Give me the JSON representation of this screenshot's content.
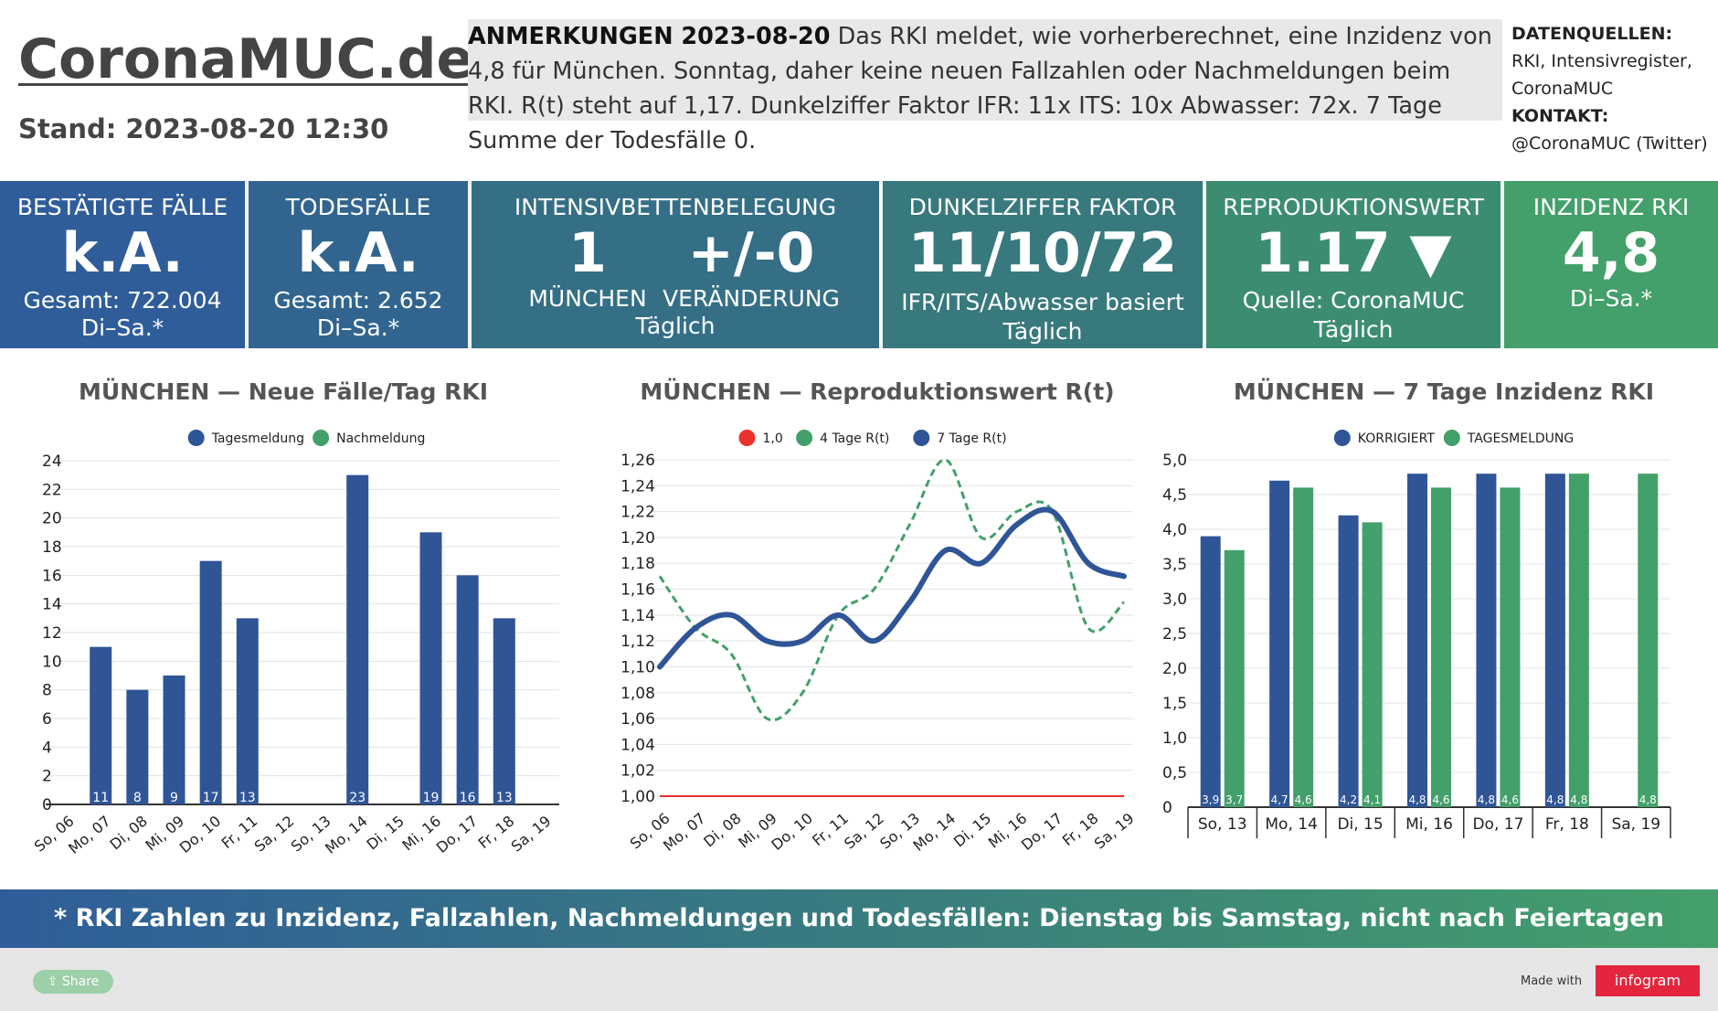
{
  "header": {
    "logo": "CoronaMUC.de",
    "stand": "Stand: 2023-08-20 12:30",
    "notes_title": "ANMERKUNGEN 2023-08-20",
    "notes_text": " Das RKI meldet, wie vorherberechnet, eine Inzidenz von 4,8 für München. Sonntag, daher keine neuen Fallzahlen oder Nachmeldungen beim RKI. R(t) steht auf 1,17. Dunkelziffer Faktor IFR: 11x ITS: 10x Abwasser: 72x. 7 Tage Summe der Todesfälle 0.",
    "sources_title": "DATENQUELLEN:",
    "sources_line1": "RKI, Intensivregister,",
    "sources_line2": "CoronaMUC",
    "contact_title": "KONTAKT:",
    "contact_text": "@CoronaMUC (Twitter)"
  },
  "kpis": {
    "faelle": {
      "title": "BESTÄTIGTE FÄLLE",
      "value": "k.A.",
      "sub1": "Gesamt: 722.004",
      "sub2": "Di–Sa.*",
      "color": "#2f5d9a"
    },
    "tode": {
      "title": "TODESFÄLLE",
      "value": "k.A.",
      "sub1": "Gesamt: 2.652",
      "sub2": "Di–Sa.*",
      "color": "#31658f"
    },
    "intensiv": {
      "title": "INTENSIVBETTENBELEGUNG",
      "value1": "1",
      "value2": "+/-0",
      "label1": "MÜNCHEN",
      "label2": "VERÄNDERUNG",
      "sub2": "Täglich",
      "color": "#346f86"
    },
    "dunkel": {
      "title": "DUNKELZIFFER FAKTOR",
      "value": "11/10/72",
      "sub1": "IFR/ITS/Abwasser basiert",
      "sub2": "Täglich",
      "color": "#38797d"
    },
    "repro": {
      "title": "REPRODUKTIONSWERT",
      "value": "1.17 ▼",
      "sub1": "Quelle: CoronaMUC",
      "sub2": "Täglich",
      "color": "#3c8c72"
    },
    "inzidenz": {
      "title": "INZIDENZ RKI",
      "value": "4,8",
      "sub1": "Di–Sa.*",
      "color": "#43a06a"
    }
  },
  "chart_data": [
    {
      "type": "bar",
      "title": "MÜNCHEN — Neue Fälle/Tag RKI",
      "categories": [
        "So, 06",
        "Mo, 07",
        "Di, 08",
        "Mi, 09",
        "Do, 10",
        "Fr, 11",
        "Sa, 12",
        "So, 13",
        "Mo, 14",
        "Di, 15",
        "Mi, 16",
        "Do, 17",
        "Fr, 18",
        "Sa, 19"
      ],
      "series": [
        {
          "name": "Tagesmeldung",
          "color": "#2f5597",
          "values": [
            0,
            11,
            8,
            9,
            17,
            13,
            0,
            0,
            23,
            0,
            19,
            16,
            13,
            0
          ]
        },
        {
          "name": "Nachmeldung",
          "color": "#43a06a",
          "values": [
            0,
            0,
            0,
            0,
            0,
            0,
            0,
            0,
            0,
            0,
            0,
            0,
            0,
            0
          ]
        }
      ],
      "yticks": [
        "0",
        "2",
        "4",
        "6",
        "8",
        "10",
        "12",
        "14",
        "16",
        "18",
        "20",
        "22",
        "24"
      ],
      "ylim": [
        0,
        24
      ],
      "legend": "top"
    },
    {
      "type": "line",
      "title": "MÜNCHEN — Reproduktionswert R(t)",
      "categories": [
        "So, 06",
        "Mo, 07",
        "Di, 08",
        "Mi, 09",
        "Do, 10",
        "Fr, 11",
        "Sa, 12",
        "So, 13",
        "Mo, 14",
        "Di, 15",
        "Mi, 16",
        "Do, 17",
        "Fr, 18",
        "Sa, 19"
      ],
      "series": [
        {
          "name": "1,0",
          "color": "#e8322b",
          "values": [
            1.0,
            1.0,
            1.0,
            1.0,
            1.0,
            1.0,
            1.0,
            1.0,
            1.0,
            1.0,
            1.0,
            1.0,
            1.0,
            1.0
          ]
        },
        {
          "name": "4 Tage R(t)",
          "color": "#43a06a",
          "values": [
            1.17,
            1.13,
            1.11,
            1.06,
            1.08,
            1.14,
            1.16,
            1.21,
            1.26,
            1.2,
            1.22,
            1.22,
            1.13,
            1.15
          ]
        },
        {
          "name": "7 Tage R(t)",
          "color": "#2f5597",
          "values": [
            1.1,
            1.13,
            1.14,
            1.12,
            1.12,
            1.14,
            1.12,
            1.15,
            1.19,
            1.18,
            1.21,
            1.22,
            1.18,
            1.17
          ]
        }
      ],
      "yticks": [
        "1,00",
        "1,02",
        "1,04",
        "1,06",
        "1,08",
        "1,10",
        "1,12",
        "1,14",
        "1,16",
        "1,18",
        "1,20",
        "1,22",
        "1,24",
        "1,26"
      ],
      "ylim": [
        1.0,
        1.26
      ],
      "legend": "top"
    },
    {
      "type": "bar",
      "title": "MÜNCHEN — 7 Tage Inzidenz RKI",
      "categories": [
        "So, 13",
        "Mo, 14",
        "Di, 15",
        "Mi, 16",
        "Do, 17",
        "Fr, 18",
        "Sa, 19"
      ],
      "series": [
        {
          "name": "KORRIGIERT",
          "color": "#2f5597",
          "values": [
            3.9,
            4.7,
            4.2,
            4.8,
            4.8,
            4.8,
            null
          ],
          "labels": [
            "3,9",
            "4,7",
            "4,2",
            "4,8",
            "4,8",
            "4,8",
            ""
          ]
        },
        {
          "name": "TAGESMELDUNG",
          "color": "#43a06a",
          "values": [
            3.7,
            4.6,
            4.1,
            4.6,
            4.6,
            4.8,
            4.8
          ],
          "labels": [
            "3,7",
            "4,6",
            "4,1",
            "4,6",
            "4,6",
            "4,8",
            "4,8"
          ]
        }
      ],
      "yticks": [
        "0",
        "0,5",
        "1,0",
        "1,5",
        "2,0",
        "2,5",
        "3,0",
        "3,5",
        "4,0",
        "4,5",
        "5,0"
      ],
      "ylim": [
        0,
        5.0
      ],
      "legend": "top"
    }
  ],
  "banner": "* RKI Zahlen zu Inzidenz, Fallzahlen, Nachmeldungen und Todesfällen: Dienstag bis Samstag, nicht nach Feiertagen",
  "footer": {
    "share": "Share",
    "made_with": "Made with",
    "brand": "infogram"
  }
}
